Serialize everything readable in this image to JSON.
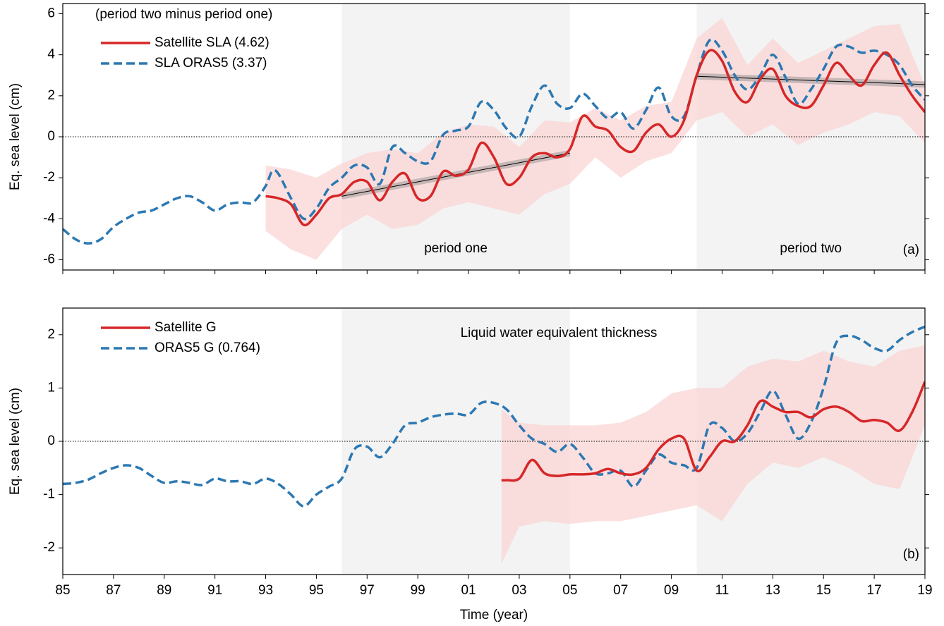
{
  "chart_data": [
    {
      "type": "line",
      "ylabel": "Eq. sea level (cm)",
      "note": "(period two minus period one)",
      "panel_label": "(a)",
      "xlim": [
        1985,
        2019
      ],
      "ylim": [
        -6.5,
        6.5
      ],
      "yticks": [
        -6,
        -4,
        -2,
        0,
        2,
        4,
        6
      ],
      "zero_line": true,
      "legend": "upper left",
      "periods": [
        [
          1996,
          2005
        ],
        [
          2010,
          2019
        ]
      ],
      "period_labels": [
        "period one",
        "period two"
      ],
      "bands": [
        {
          "color": "#fbd6d6",
          "x": [
            1993,
            1994,
            1995,
            1996,
            1997,
            1998,
            1999,
            2000,
            2001,
            2002,
            2003,
            2004,
            2005,
            2006,
            2007,
            2008,
            2009,
            2010,
            2011,
            2012,
            2013,
            2014,
            2015,
            2016,
            2017,
            2018,
            2019
          ],
          "upper": [
            -1.4,
            -1.6,
            -2.0,
            -1.3,
            -0.8,
            -0.6,
            -0.8,
            0.2,
            0.6,
            0.5,
            -0.5,
            0.8,
            0.7,
            1.4,
            0.8,
            1.5,
            1.7,
            4.8,
            5.8,
            3.5,
            4.8,
            3.6,
            4.2,
            4.8,
            5.4,
            5.5,
            2.5
          ],
          "lower": [
            -4.6,
            -5.5,
            -6.0,
            -4.5,
            -3.8,
            -4.5,
            -4.3,
            -3.5,
            -3.2,
            -3.5,
            -3.8,
            -2.8,
            -2.3,
            -1.0,
            -2.0,
            -1.2,
            -0.8,
            0.8,
            1.2,
            0.0,
            0.6,
            -0.4,
            0.2,
            0.6,
            1.2,
            1.0,
            -0.3
          ]
        }
      ],
      "trends": [
        {
          "x": [
            1996,
            2005
          ],
          "values": [
            -2.9,
            -0.8
          ]
        },
        {
          "x": [
            2010,
            2019
          ],
          "values": [
            2.95,
            2.55
          ]
        }
      ],
      "series": [
        {
          "name": "Satellite SLA (4.62)",
          "color": "#d62728",
          "style": "solid",
          "x": [
            1993,
            1993.5,
            1994,
            1994.5,
            1995,
            1995.5,
            1996,
            1996.5,
            1997,
            1997.5,
            1998,
            1998.5,
            1999,
            1999.5,
            2000,
            2000.5,
            2001,
            2001.5,
            2002,
            2002.5,
            2003,
            2003.5,
            2004,
            2004.5,
            2005,
            2005.5,
            2006,
            2006.5,
            2007,
            2007.5,
            2008,
            2008.5,
            2009,
            2009.5,
            2010,
            2010.5,
            2011,
            2011.5,
            2012,
            2012.5,
            2013,
            2013.5,
            2014,
            2014.5,
            2015,
            2015.5,
            2016,
            2016.5,
            2017,
            2017.5,
            2018,
            2018.5,
            2019
          ],
          "values": [
            -2.9,
            -3.0,
            -3.3,
            -4.3,
            -3.8,
            -3.0,
            -2.8,
            -2.2,
            -2.2,
            -3.1,
            -2.2,
            -1.8,
            -3.0,
            -2.9,
            -1.7,
            -1.9,
            -1.6,
            -0.3,
            -1.0,
            -2.3,
            -2.0,
            -1.0,
            -0.8,
            -1.0,
            -0.6,
            1.0,
            0.5,
            0.3,
            -0.5,
            -0.7,
            0.2,
            0.6,
            0.0,
            0.8,
            3.0,
            4.2,
            3.7,
            2.2,
            1.7,
            2.8,
            3.3,
            2.0,
            1.5,
            1.5,
            2.5,
            3.6,
            3.0,
            2.5,
            3.5,
            4.1,
            3.0,
            2.0,
            1.2
          ]
        },
        {
          "name": "SLA ORAS5 (3.37)",
          "color": "#2c78b2",
          "style": "dashed",
          "x": [
            1985,
            1985.5,
            1986,
            1986.5,
            1987,
            1987.5,
            1988,
            1988.5,
            1989,
            1989.5,
            1990,
            1990.5,
            1991,
            1991.5,
            1992,
            1992.5,
            1993,
            1993.25,
            1993.5,
            1994,
            1994.5,
            1995,
            1995.5,
            1996,
            1996.5,
            1997,
            1997.5,
            1998,
            1998.5,
            1999,
            1999.5,
            2000,
            2000.5,
            2001,
            2001.5,
            2002,
            2002.5,
            2003,
            2003.5,
            2004,
            2004.5,
            2005,
            2005.5,
            2006,
            2006.5,
            2007,
            2007.5,
            2008,
            2008.5,
            2009,
            2009.5,
            2010,
            2010.5,
            2011,
            2011.5,
            2012,
            2012.5,
            2013,
            2013.5,
            2014,
            2014.5,
            2015,
            2015.5,
            2016,
            2016.5,
            2017,
            2017.5,
            2018,
            2018.5,
            2019
          ],
          "values": [
            -4.5,
            -5.0,
            -5.2,
            -5.0,
            -4.4,
            -4.0,
            -3.7,
            -3.6,
            -3.3,
            -3.0,
            -2.9,
            -3.2,
            -3.6,
            -3.3,
            -3.2,
            -3.2,
            -2.4,
            -1.7,
            -1.8,
            -3.0,
            -4.0,
            -3.5,
            -2.5,
            -2.0,
            -1.4,
            -1.5,
            -2.3,
            -0.5,
            -0.8,
            -1.2,
            -1.2,
            0.1,
            0.3,
            0.5,
            1.7,
            1.3,
            0.4,
            0.0,
            1.5,
            2.5,
            1.6,
            1.4,
            2.1,
            1.5,
            0.9,
            1.2,
            0.4,
            1.3,
            2.4,
            1.0,
            1.0,
            3.0,
            4.7,
            4.2,
            3.0,
            2.3,
            3.0,
            4.0,
            2.9,
            1.6,
            2.3,
            3.3,
            4.4,
            4.4,
            4.1,
            4.2,
            4.0,
            3.5,
            2.5,
            1.8
          ]
        }
      ]
    },
    {
      "type": "line",
      "ylabel": "Eq. sea level (cm)",
      "xlabel": "Time (year)",
      "note": "Liquid water equivalent thickness",
      "panel_label": "(b)",
      "xlim": [
        1985,
        2019
      ],
      "ylim": [
        -2.5,
        2.5
      ],
      "yticks": [
        -2,
        -1,
        0,
        1,
        2
      ],
      "zero_line": true,
      "legend": "upper left",
      "xticks": [
        {
          "value": 1985,
          "label": "85"
        },
        {
          "value": 1987,
          "label": "87"
        },
        {
          "value": 1989,
          "label": "89"
        },
        {
          "value": 1991,
          "label": "91"
        },
        {
          "value": 1993,
          "label": "93"
        },
        {
          "value": 1995,
          "label": "95"
        },
        {
          "value": 1997,
          "label": "97"
        },
        {
          "value": 1999,
          "label": "99"
        },
        {
          "value": 2001,
          "label": "01"
        },
        {
          "value": 2003,
          "label": "03"
        },
        {
          "value": 2005,
          "label": "05"
        },
        {
          "value": 2007,
          "label": "07"
        },
        {
          "value": 2009,
          "label": "09"
        },
        {
          "value": 2011,
          "label": "11"
        },
        {
          "value": 2013,
          "label": "13"
        },
        {
          "value": 2015,
          "label": "15"
        },
        {
          "value": 2017,
          "label": "17"
        },
        {
          "value": 2019,
          "label": "19"
        }
      ],
      "periods": [
        [
          1996,
          2005
        ],
        [
          2010,
          2019
        ]
      ],
      "bands": [
        {
          "color": "#fbd6d6",
          "x": [
            2002.3,
            2003,
            2004,
            2005,
            2006,
            2007,
            2008,
            2009,
            2010,
            2011,
            2012,
            2013,
            2014,
            2015,
            2016,
            2017,
            2018,
            2019
          ],
          "upper": [
            0.6,
            0.35,
            0.3,
            0.3,
            0.3,
            0.35,
            0.55,
            0.9,
            1.0,
            1.0,
            1.4,
            1.55,
            1.5,
            1.7,
            1.5,
            1.4,
            1.7,
            1.8
          ],
          "lower": [
            -2.3,
            -1.6,
            -1.5,
            -1.55,
            -1.5,
            -1.5,
            -1.4,
            -1.3,
            -1.2,
            -1.5,
            -0.8,
            -0.4,
            -0.5,
            -0.3,
            -0.5,
            -0.8,
            -0.9,
            0.3
          ]
        }
      ],
      "series": [
        {
          "name": "Satellite G",
          "color": "#d62728",
          "style": "solid",
          "x": [
            2002.3,
            2002.5,
            2003,
            2003.5,
            2004,
            2004.5,
            2005,
            2005.5,
            2006,
            2006.5,
            2007,
            2007.5,
            2008,
            2008.5,
            2009,
            2009.5,
            2010,
            2010.5,
            2011,
            2011.5,
            2012,
            2012.5,
            2013,
            2013.5,
            2014,
            2014.5,
            2015,
            2015.5,
            2016,
            2016.5,
            2017,
            2017.5,
            2018,
            2018.5,
            2019
          ],
          "values": [
            -0.73,
            -0.73,
            -0.7,
            -0.35,
            -0.6,
            -0.65,
            -0.62,
            -0.62,
            -0.6,
            -0.52,
            -0.6,
            -0.62,
            -0.5,
            -0.15,
            0.05,
            0.05,
            -0.55,
            -0.3,
            0.0,
            0.0,
            0.3,
            0.75,
            0.65,
            0.55,
            0.55,
            0.45,
            0.6,
            0.65,
            0.55,
            0.38,
            0.4,
            0.35,
            0.2,
            0.55,
            1.12
          ]
        },
        {
          "name": "ORAS5 G (0.764)",
          "color": "#2c78b2",
          "style": "dashed",
          "x": [
            1985,
            1985.5,
            1986,
            1986.5,
            1987,
            1987.5,
            1988,
            1988.5,
            1989,
            1989.5,
            1990,
            1990.5,
            1991,
            1991.5,
            1992,
            1992.5,
            1993,
            1993.5,
            1994,
            1994.5,
            1995,
            1995.5,
            1996,
            1996.5,
            1997,
            1997.5,
            1998,
            1998.5,
            1999,
            1999.5,
            2000,
            2000.5,
            2001,
            2001.5,
            2002,
            2002.5,
            2003,
            2003.5,
            2004,
            2004.5,
            2005,
            2005.5,
            2006,
            2006.5,
            2007,
            2007.5,
            2008,
            2008.5,
            2009,
            2009.5,
            2010,
            2010.5,
            2011,
            2011.5,
            2012,
            2012.5,
            2013,
            2013.5,
            2014,
            2014.5,
            2015,
            2015.5,
            2016,
            2016.5,
            2017,
            2017.5,
            2018,
            2018.5,
            2019
          ],
          "values": [
            -0.8,
            -0.78,
            -0.72,
            -0.6,
            -0.5,
            -0.45,
            -0.5,
            -0.65,
            -0.78,
            -0.75,
            -0.78,
            -0.82,
            -0.7,
            -0.75,
            -0.75,
            -0.8,
            -0.7,
            -0.8,
            -1.0,
            -1.22,
            -1.0,
            -0.85,
            -0.7,
            -0.15,
            -0.1,
            -0.3,
            -0.05,
            0.3,
            0.35,
            0.45,
            0.5,
            0.52,
            0.5,
            0.72,
            0.72,
            0.6,
            0.3,
            0.05,
            -0.05,
            -0.2,
            -0.05,
            -0.3,
            -0.6,
            -0.6,
            -0.55,
            -0.85,
            -0.55,
            -0.25,
            -0.4,
            -0.45,
            -0.5,
            0.3,
            0.25,
            0.0,
            0.15,
            0.55,
            0.95,
            0.5,
            0.05,
            0.35,
            1.0,
            1.85,
            1.98,
            1.9,
            1.75,
            1.7,
            1.9,
            2.05,
            2.15
          ]
        }
      ]
    }
  ]
}
